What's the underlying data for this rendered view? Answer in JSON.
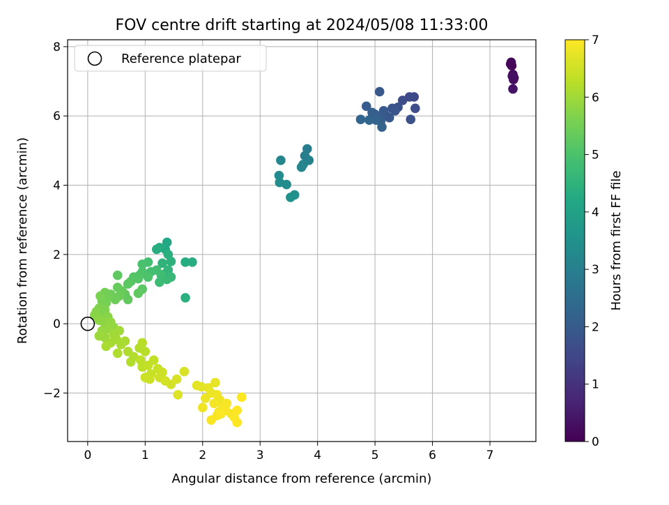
{
  "chart_data": {
    "type": "scatter",
    "title": "FOV centre drift starting at 2024/05/08 11:33:00",
    "xlabel": "Angular distance from reference (arcmin)",
    "ylabel": "Rotation from reference (arcmin)",
    "xlim": [
      -0.35,
      7.8
    ],
    "ylim": [
      -3.4,
      8.2
    ],
    "xticks": [
      "0",
      "1",
      "2",
      "3",
      "4",
      "5",
      "6",
      "7"
    ],
    "yticks": [
      "−2",
      "0",
      "2",
      "4",
      "6",
      "8"
    ],
    "xtick_values": [
      0,
      1,
      2,
      3,
      4,
      5,
      6,
      7
    ],
    "ytick_values": [
      -2,
      0,
      2,
      4,
      6,
      8
    ],
    "grid": true,
    "legend": {
      "placement": "top-left",
      "entries": [
        "Reference platepar"
      ]
    },
    "reference_point": {
      "x": 0,
      "y": 0
    },
    "colorbar": {
      "label": "Hours from first FF file",
      "range": [
        0,
        7
      ],
      "ticks": [
        "0",
        "1",
        "2",
        "3",
        "4",
        "5",
        "6",
        "7"
      ],
      "tick_values": [
        0,
        1,
        2,
        3,
        4,
        5,
        6,
        7
      ],
      "colormap": "viridis"
    },
    "points": [
      {
        "x": 7.37,
        "y": 7.55,
        "t": 0.05
      },
      {
        "x": 7.38,
        "y": 7.45,
        "t": 0.1
      },
      {
        "x": 7.36,
        "y": 7.5,
        "t": 0.12
      },
      {
        "x": 7.4,
        "y": 7.2,
        "t": 0.2
      },
      {
        "x": 7.42,
        "y": 7.1,
        "t": 0.25
      },
      {
        "x": 7.41,
        "y": 7.05,
        "t": 0.28
      },
      {
        "x": 7.39,
        "y": 7.15,
        "t": 0.3
      },
      {
        "x": 7.4,
        "y": 6.78,
        "t": 0.35
      },
      {
        "x": 5.68,
        "y": 6.55,
        "t": 1.5
      },
      {
        "x": 5.6,
        "y": 6.55,
        "t": 1.55
      },
      {
        "x": 5.48,
        "y": 6.45,
        "t": 1.6
      },
      {
        "x": 5.7,
        "y": 6.22,
        "t": 1.65
      },
      {
        "x": 5.62,
        "y": 5.9,
        "t": 1.7
      },
      {
        "x": 5.4,
        "y": 6.25,
        "t": 1.75
      },
      {
        "x": 5.3,
        "y": 6.22,
        "t": 1.8
      },
      {
        "x": 5.35,
        "y": 6.15,
        "t": 1.85
      },
      {
        "x": 5.08,
        "y": 6.7,
        "t": 1.9
      },
      {
        "x": 4.85,
        "y": 6.28,
        "t": 2.05
      },
      {
        "x": 5.15,
        "y": 6.15,
        "t": 1.95
      },
      {
        "x": 5.2,
        "y": 6.0,
        "t": 2.0
      },
      {
        "x": 5.1,
        "y": 5.85,
        "t": 2.1
      },
      {
        "x": 5.0,
        "y": 6.05,
        "t": 2.15
      },
      {
        "x": 4.95,
        "y": 5.95,
        "t": 2.2
      },
      {
        "x": 4.75,
        "y": 5.9,
        "t": 2.25
      },
      {
        "x": 4.9,
        "y": 5.88,
        "t": 2.3
      },
      {
        "x": 5.05,
        "y": 5.95,
        "t": 2.05
      },
      {
        "x": 5.12,
        "y": 5.68,
        "t": 2.2
      },
      {
        "x": 5.25,
        "y": 5.95,
        "t": 1.9
      },
      {
        "x": 4.95,
        "y": 6.1,
        "t": 2.1
      },
      {
        "x": 5.02,
        "y": 5.88,
        "t": 2.25
      },
      {
        "x": 3.82,
        "y": 5.05,
        "t": 2.9
      },
      {
        "x": 3.78,
        "y": 4.85,
        "t": 3.0
      },
      {
        "x": 3.85,
        "y": 4.72,
        "t": 3.05
      },
      {
        "x": 3.75,
        "y": 4.6,
        "t": 3.1
      },
      {
        "x": 3.72,
        "y": 4.52,
        "t": 3.15
      },
      {
        "x": 3.36,
        "y": 4.72,
        "t": 3.2
      },
      {
        "x": 3.33,
        "y": 4.28,
        "t": 3.3
      },
      {
        "x": 3.34,
        "y": 4.08,
        "t": 3.35
      },
      {
        "x": 3.46,
        "y": 4.02,
        "t": 3.4
      },
      {
        "x": 3.6,
        "y": 3.72,
        "t": 3.45
      },
      {
        "x": 3.53,
        "y": 3.65,
        "t": 3.5
      },
      {
        "x": 1.38,
        "y": 2.35,
        "t": 4.2
      },
      {
        "x": 1.35,
        "y": 2.15,
        "t": 4.25
      },
      {
        "x": 1.25,
        "y": 2.2,
        "t": 4.3
      },
      {
        "x": 1.2,
        "y": 2.15,
        "t": 4.35
      },
      {
        "x": 1.4,
        "y": 2.0,
        "t": 4.4
      },
      {
        "x": 1.45,
        "y": 1.8,
        "t": 4.45
      },
      {
        "x": 1.3,
        "y": 1.75,
        "t": 4.5
      },
      {
        "x": 1.7,
        "y": 1.78,
        "t": 4.3
      },
      {
        "x": 1.82,
        "y": 1.78,
        "t": 4.35
      },
      {
        "x": 1.7,
        "y": 0.75,
        "t": 4.4
      },
      {
        "x": 1.4,
        "y": 1.55,
        "t": 4.55
      },
      {
        "x": 1.35,
        "y": 1.45,
        "t": 4.6
      },
      {
        "x": 1.45,
        "y": 1.35,
        "t": 4.65
      },
      {
        "x": 1.38,
        "y": 1.28,
        "t": 4.7
      },
      {
        "x": 1.25,
        "y": 1.2,
        "t": 4.75
      },
      {
        "x": 1.28,
        "y": 1.4,
        "t": 4.8
      },
      {
        "x": 1.2,
        "y": 1.55,
        "t": 4.85
      },
      {
        "x": 1.1,
        "y": 1.5,
        "t": 4.9
      },
      {
        "x": 1.05,
        "y": 1.78,
        "t": 4.9
      },
      {
        "x": 0.95,
        "y": 1.72,
        "t": 4.95
      },
      {
        "x": 1.05,
        "y": 1.35,
        "t": 5.0
      },
      {
        "x": 0.95,
        "y": 1.5,
        "t": 5.0
      },
      {
        "x": 0.9,
        "y": 1.4,
        "t": 5.05
      },
      {
        "x": 0.88,
        "y": 1.3,
        "t": 5.1
      },
      {
        "x": 0.8,
        "y": 1.35,
        "t": 5.1
      },
      {
        "x": 0.75,
        "y": 1.22,
        "t": 5.15
      },
      {
        "x": 0.7,
        "y": 1.15,
        "t": 5.2
      },
      {
        "x": 0.95,
        "y": 1.0,
        "t": 5.2
      },
      {
        "x": 0.88,
        "y": 0.88,
        "t": 5.25
      },
      {
        "x": 0.7,
        "y": 0.7,
        "t": 5.3
      },
      {
        "x": 0.65,
        "y": 0.85,
        "t": 5.3
      },
      {
        "x": 0.6,
        "y": 0.95,
        "t": 5.35
      },
      {
        "x": 0.52,
        "y": 1.05,
        "t": 5.35
      },
      {
        "x": 0.52,
        "y": 1.4,
        "t": 5.25
      },
      {
        "x": 0.55,
        "y": 0.8,
        "t": 5.4
      },
      {
        "x": 0.48,
        "y": 0.7,
        "t": 5.45
      },
      {
        "x": 0.4,
        "y": 0.85,
        "t": 5.45
      },
      {
        "x": 0.35,
        "y": 0.75,
        "t": 5.5
      },
      {
        "x": 0.3,
        "y": 0.9,
        "t": 5.5
      },
      {
        "x": 0.32,
        "y": 0.6,
        "t": 5.55
      },
      {
        "x": 0.25,
        "y": 0.65,
        "t": 5.55
      },
      {
        "x": 0.22,
        "y": 0.8,
        "t": 5.6
      },
      {
        "x": 0.2,
        "y": 0.45,
        "t": 5.65
      },
      {
        "x": 0.15,
        "y": 0.35,
        "t": 5.7
      },
      {
        "x": 0.25,
        "y": 0.3,
        "t": 5.7
      },
      {
        "x": 0.3,
        "y": 0.4,
        "t": 5.65
      },
      {
        "x": 0.35,
        "y": 0.2,
        "t": 5.75
      },
      {
        "x": 0.12,
        "y": 0.25,
        "t": 5.75
      },
      {
        "x": 0.2,
        "y": 0.1,
        "t": 5.8
      },
      {
        "x": 0.28,
        "y": 0.05,
        "t": 5.8
      },
      {
        "x": 0.4,
        "y": 0.05,
        "t": 5.85
      },
      {
        "x": 0.45,
        "y": -0.1,
        "t": 5.85
      },
      {
        "x": 0.35,
        "y": -0.15,
        "t": 5.9
      },
      {
        "x": 0.25,
        "y": -0.2,
        "t": 5.9
      },
      {
        "x": 0.2,
        "y": -0.35,
        "t": 5.95
      },
      {
        "x": 0.3,
        "y": -0.4,
        "t": 5.95
      },
      {
        "x": 0.45,
        "y": -0.3,
        "t": 6.0
      },
      {
        "x": 0.55,
        "y": -0.2,
        "t": 6.0
      },
      {
        "x": 0.5,
        "y": -0.45,
        "t": 6.05
      },
      {
        "x": 0.4,
        "y": -0.55,
        "t": 6.05
      },
      {
        "x": 0.32,
        "y": -0.65,
        "t": 6.1
      },
      {
        "x": 0.58,
        "y": -0.6,
        "t": 6.1
      },
      {
        "x": 0.65,
        "y": -0.5,
        "t": 6.1
      },
      {
        "x": 0.52,
        "y": -0.85,
        "t": 6.15
      },
      {
        "x": 0.7,
        "y": -0.8,
        "t": 6.15
      },
      {
        "x": 0.8,
        "y": -0.95,
        "t": 6.2
      },
      {
        "x": 0.75,
        "y": -1.1,
        "t": 6.2
      },
      {
        "x": 0.9,
        "y": -0.7,
        "t": 6.2
      },
      {
        "x": 0.95,
        "y": -0.55,
        "t": 6.25
      },
      {
        "x": 1.0,
        "y": -0.8,
        "t": 6.25
      },
      {
        "x": 0.92,
        "y": -1.05,
        "t": 6.3
      },
      {
        "x": 0.95,
        "y": -1.25,
        "t": 6.3
      },
      {
        "x": 1.05,
        "y": -1.2,
        "t": 6.35
      },
      {
        "x": 1.15,
        "y": -1.05,
        "t": 6.35
      },
      {
        "x": 1.22,
        "y": -1.3,
        "t": 6.4
      },
      {
        "x": 1.1,
        "y": -1.45,
        "t": 6.4
      },
      {
        "x": 1.0,
        "y": -1.55,
        "t": 6.45
      },
      {
        "x": 1.08,
        "y": -1.6,
        "t": 6.45
      },
      {
        "x": 1.25,
        "y": -1.55,
        "t": 6.5
      },
      {
        "x": 1.3,
        "y": -1.4,
        "t": 6.5
      },
      {
        "x": 1.35,
        "y": -1.65,
        "t": 6.55
      },
      {
        "x": 1.45,
        "y": -1.75,
        "t": 6.55
      },
      {
        "x": 1.55,
        "y": -1.6,
        "t": 6.6
      },
      {
        "x": 1.68,
        "y": -1.38,
        "t": 6.6
      },
      {
        "x": 1.57,
        "y": -2.05,
        "t": 6.65
      },
      {
        "x": 1.9,
        "y": -1.78,
        "t": 6.7
      },
      {
        "x": 1.98,
        "y": -1.82,
        "t": 6.7
      },
      {
        "x": 2.1,
        "y": -1.85,
        "t": 6.75
      },
      {
        "x": 2.22,
        "y": -1.7,
        "t": 6.75
      },
      {
        "x": 2.15,
        "y": -2.0,
        "t": 6.8
      },
      {
        "x": 2.05,
        "y": -2.15,
        "t": 6.8
      },
      {
        "x": 2.25,
        "y": -2.05,
        "t": 6.85
      },
      {
        "x": 2.3,
        "y": -2.2,
        "t": 6.85
      },
      {
        "x": 2.2,
        "y": -2.3,
        "t": 6.9
      },
      {
        "x": 2.35,
        "y": -2.4,
        "t": 6.9
      },
      {
        "x": 2.0,
        "y": -2.42,
        "t": 6.85
      },
      {
        "x": 2.28,
        "y": -2.55,
        "t": 6.9
      },
      {
        "x": 2.4,
        "y": -2.5,
        "t": 6.95
      },
      {
        "x": 2.25,
        "y": -2.65,
        "t": 6.95
      },
      {
        "x": 2.15,
        "y": -2.78,
        "t": 6.95
      },
      {
        "x": 2.5,
        "y": -2.6,
        "t": 6.95
      },
      {
        "x": 2.6,
        "y": -2.5,
        "t": 7.0
      },
      {
        "x": 2.6,
        "y": -2.85,
        "t": 7.0
      },
      {
        "x": 2.55,
        "y": -2.7,
        "t": 6.98
      },
      {
        "x": 2.68,
        "y": -2.12,
        "t": 7.0
      },
      {
        "x": 2.42,
        "y": -2.3,
        "t": 6.92
      },
      {
        "x": 2.32,
        "y": -2.6,
        "t": 6.97
      }
    ]
  }
}
